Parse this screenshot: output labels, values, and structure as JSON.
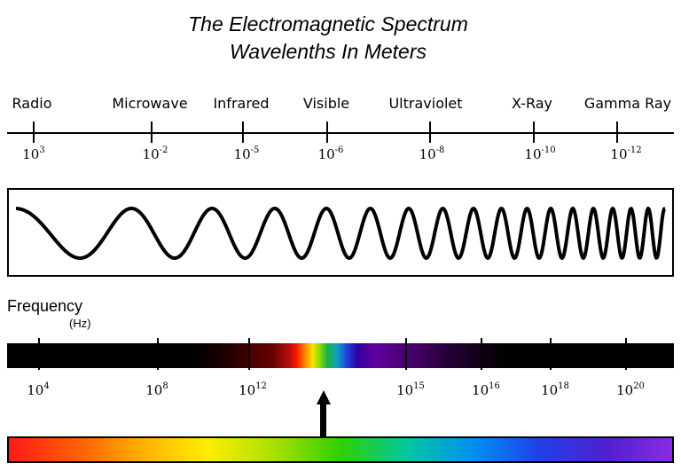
{
  "title": {
    "line1": "The Electromagnetic Spectrum",
    "line2": "Wavelenths In Meters"
  },
  "bands": [
    "Radio",
    "Microwave",
    "Infrared",
    "Visible",
    "Ultraviolet",
    "X-Ray",
    "Gamma Ray"
  ],
  "wavelength_ticks": [
    {
      "base": "10",
      "exp": "3"
    },
    {
      "base": "10",
      "exp": "-2"
    },
    {
      "base": "10",
      "exp": "-5"
    },
    {
      "base": "10",
      "exp": "-6"
    },
    {
      "base": "10",
      "exp": "-8"
    },
    {
      "base": "10",
      "exp": "-10"
    },
    {
      "base": "10",
      "exp": "-12"
    }
  ],
  "frequency": {
    "title": "Frequency",
    "unit": "(Hz)",
    "ticks": [
      {
        "base": "10",
        "exp": "4"
      },
      {
        "base": "10",
        "exp": "8"
      },
      {
        "base": "10",
        "exp": "12"
      },
      {
        "base": "10",
        "exp": "15"
      },
      {
        "base": "10",
        "exp": "16"
      },
      {
        "base": "10",
        "exp": "18"
      },
      {
        "base": "10",
        "exp": "20"
      }
    ]
  },
  "colors": {
    "line": "#000000",
    "background": "#ffffff"
  }
}
